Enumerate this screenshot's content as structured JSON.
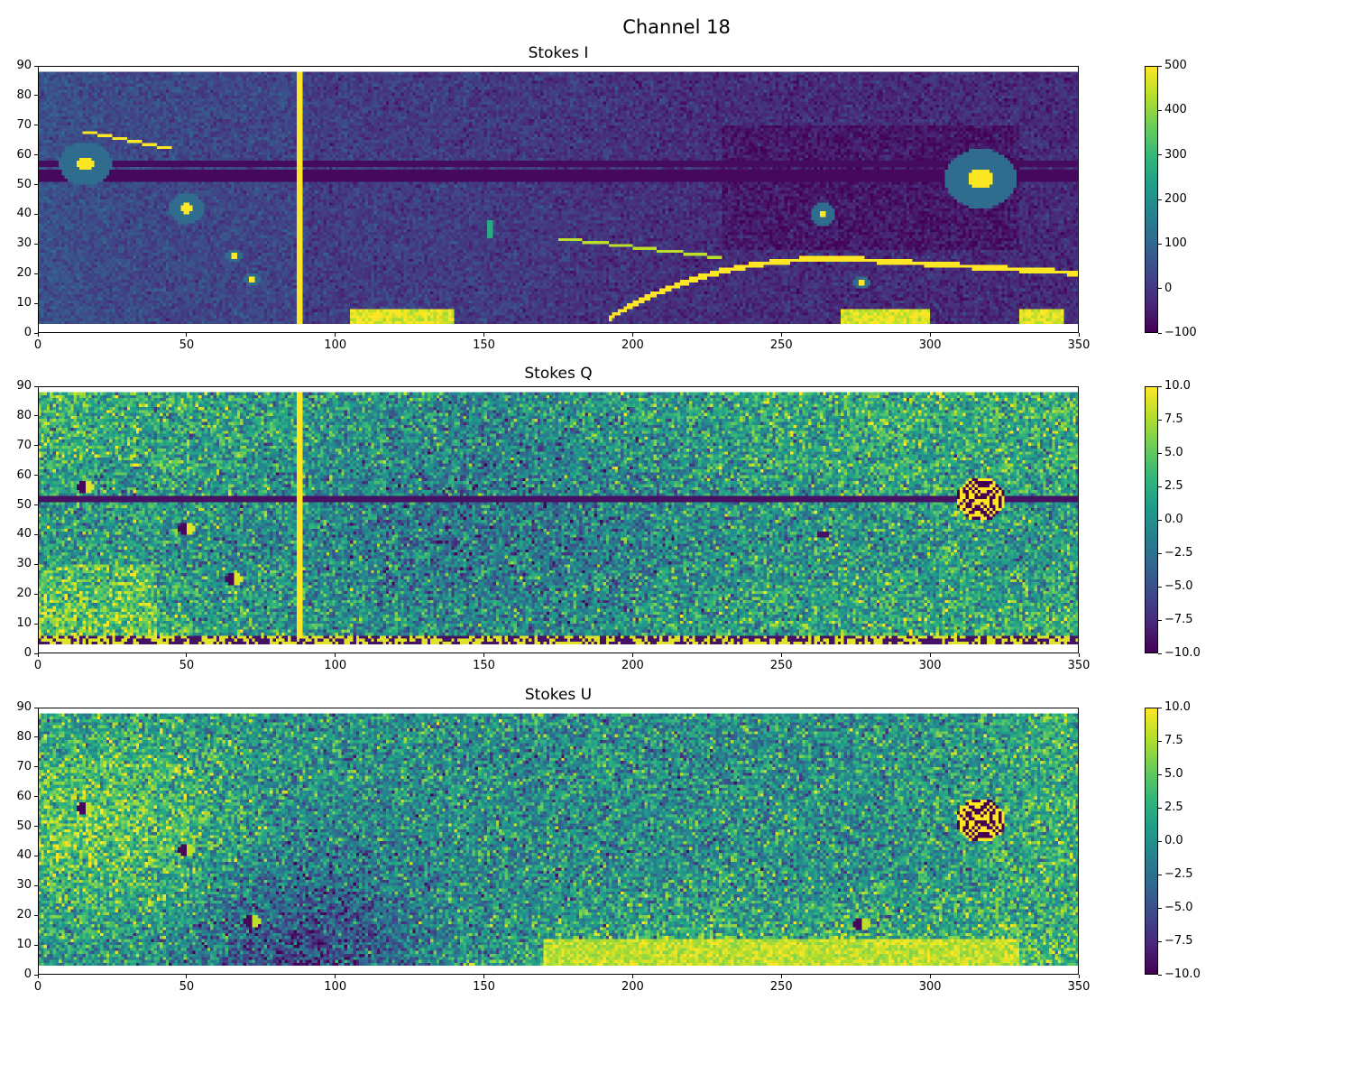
{
  "figure": {
    "suptitle": "Channel 18"
  },
  "chart_data": [
    {
      "type": "heatmap",
      "title": "Stokes I",
      "xlim": [
        0,
        350
      ],
      "ylim": [
        0,
        90
      ],
      "xticks": [
        0,
        50,
        100,
        150,
        200,
        250,
        300,
        350
      ],
      "yticks": [
        0,
        10,
        20,
        30,
        40,
        50,
        60,
        70,
        80,
        90
      ],
      "colormap": "viridis",
      "clim": [
        -100,
        500
      ],
      "cbar_ticks": [
        "−100",
        "0",
        "100",
        "200",
        "300",
        "400",
        "500"
      ],
      "cbar_values": [
        -100,
        0,
        100,
        200,
        300,
        400,
        500
      ],
      "features": [
        {
          "kind": "source",
          "x": 16,
          "y": 57,
          "value": 500
        },
        {
          "kind": "source",
          "x": 317,
          "y": 52,
          "value": 500
        },
        {
          "kind": "source",
          "x": 50,
          "y": 42,
          "value": 400
        },
        {
          "kind": "source",
          "x": 264,
          "y": 40,
          "value": 400
        },
        {
          "kind": "vertical-streak",
          "x": 88,
          "y_range": [
            3,
            88
          ],
          "value": 500
        },
        {
          "kind": "arc",
          "x_range": [
            193,
            350
          ],
          "y_peak": 25,
          "value": 500
        },
        {
          "kind": "bright-floor",
          "x_range": [
            105,
            140
          ],
          "y_range": [
            3,
            8
          ],
          "value": 500
        },
        {
          "kind": "bright-floor",
          "x_range": [
            270,
            300
          ],
          "y_range": [
            3,
            7
          ],
          "value": 500
        }
      ]
    },
    {
      "type": "heatmap",
      "title": "Stokes Q",
      "xlim": [
        0,
        350
      ],
      "ylim": [
        0,
        90
      ],
      "xticks": [
        0,
        50,
        100,
        150,
        200,
        250,
        300,
        350
      ],
      "yticks": [
        0,
        10,
        20,
        30,
        40,
        50,
        60,
        70,
        80,
        90
      ],
      "colormap": "viridis",
      "clim": [
        -10,
        10
      ],
      "cbar_ticks": [
        "−10.0",
        "−7.5",
        "−5.0",
        "−2.5",
        "0.0",
        "2.5",
        "5.0",
        "7.5",
        "10.0"
      ],
      "cbar_values": [
        -10,
        -7.5,
        -5,
        -2.5,
        0,
        2.5,
        5,
        7.5,
        10
      ],
      "features": [
        {
          "kind": "source-ring",
          "x": 317,
          "y": 52
        },
        {
          "kind": "source",
          "x": 16,
          "y": 56
        },
        {
          "kind": "source",
          "x": 50,
          "y": 42
        },
        {
          "kind": "vertical-streak",
          "x": 88,
          "y_range": [
            5,
            88
          ],
          "value": 10
        },
        {
          "kind": "dark-row",
          "y": 52,
          "value": -10
        }
      ]
    },
    {
      "type": "heatmap",
      "title": "Stokes U",
      "xlim": [
        0,
        350
      ],
      "ylim": [
        0,
        90
      ],
      "xticks": [
        0,
        50,
        100,
        150,
        200,
        250,
        300,
        350
      ],
      "yticks": [
        0,
        10,
        20,
        30,
        40,
        50,
        60,
        70,
        80,
        90
      ],
      "colormap": "viridis",
      "clim": [
        -10,
        10
      ],
      "cbar_ticks": [
        "−10.0",
        "−7.5",
        "−5.0",
        "−2.5",
        "0.0",
        "2.5",
        "5.0",
        "7.5",
        "10.0"
      ],
      "cbar_values": [
        -10,
        -7.5,
        -5,
        -2.5,
        0,
        2.5,
        5,
        7.5,
        10
      ],
      "features": [
        {
          "kind": "source-ring",
          "x": 317,
          "y": 52
        },
        {
          "kind": "source",
          "x": 16,
          "y": 56
        },
        {
          "kind": "source",
          "x": 50,
          "y": 42
        },
        {
          "kind": "bright-floor",
          "x_range": [
            170,
            330
          ],
          "y_range": [
            3,
            12
          ],
          "value": 10
        }
      ]
    }
  ]
}
